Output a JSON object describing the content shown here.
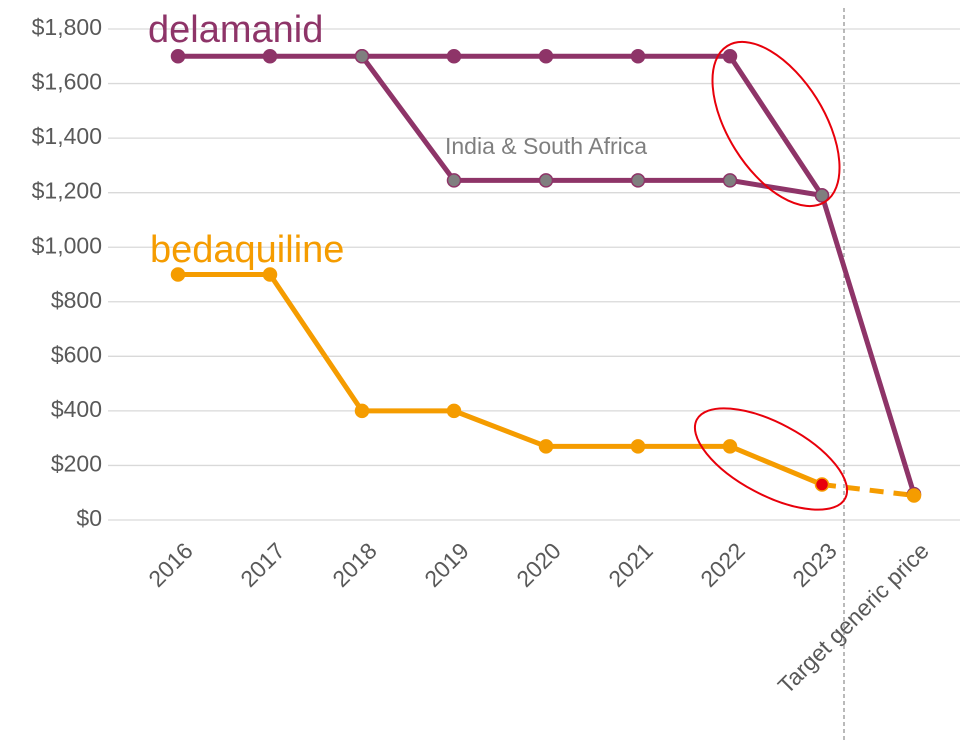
{
  "chart_data": {
    "type": "line",
    "categories": [
      "2016",
      "2017",
      "2018",
      "2019",
      "2020",
      "2021",
      "2022",
      "2023",
      "Target generic price"
    ],
    "series": [
      {
        "name": "delamanid",
        "color": "#8e3468",
        "marker_color": "#8e3468",
        "values": [
          1700,
          1700,
          1700,
          1700,
          1700,
          1700,
          1700,
          1190,
          95
        ],
        "highlight_index": 7,
        "highlight_color": "#e8000b"
      },
      {
        "name": "India & South Africa",
        "color": "#8e3468",
        "marker_color": "#7f7f7f",
        "values": [
          null,
          null,
          1700,
          1245,
          1245,
          1245,
          1245,
          1190,
          null
        ]
      },
      {
        "name": "bedaquiline",
        "color": "#f59c00",
        "marker_color": "#f59c00",
        "values": [
          900,
          900,
          400,
          400,
          270,
          270,
          270,
          130,
          90
        ],
        "highlight_index": 7,
        "highlight_color": "#e8000b",
        "dashed_last_segment": true
      }
    ],
    "ylim": [
      0,
      1800
    ],
    "yticks": [
      {
        "value": 0,
        "label": "$0"
      },
      {
        "value": 200,
        "label": "$200"
      },
      {
        "value": 400,
        "label": "$400"
      },
      {
        "value": 600,
        "label": "$600"
      },
      {
        "value": 800,
        "label": "$800"
      },
      {
        "value": 1000,
        "label": "$1,000"
      },
      {
        "value": 1200,
        "label": "$1,200"
      },
      {
        "value": 1400,
        "label": "$1,400"
      },
      {
        "value": 1600,
        "label": "$1,600"
      },
      {
        "value": 1800,
        "label": "$1,800"
      }
    ],
    "grid": true
  }
}
